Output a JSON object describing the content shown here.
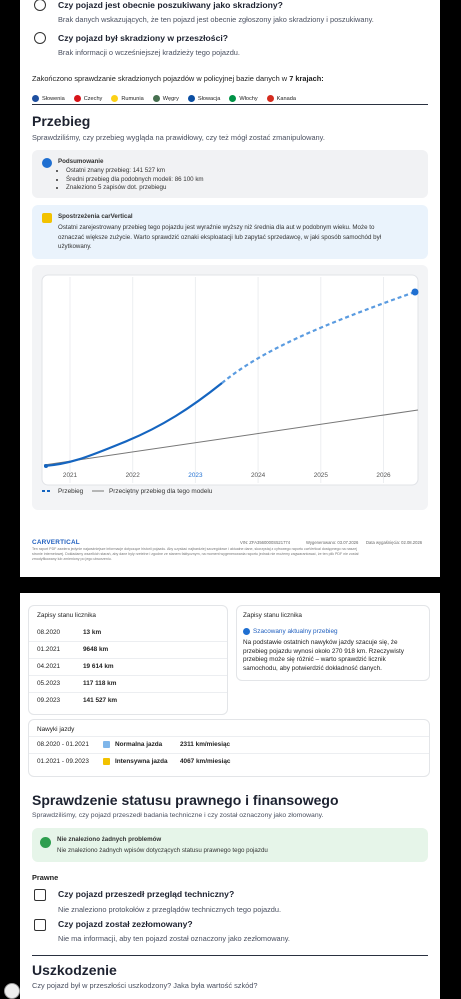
{
  "theft": {
    "q1": "Czy pojazd jest obecnie poszukiwany jako skradziony?",
    "a1": "Brak danych wskazujących, że ten pojazd jest obecnie zgłoszony jako skradziony i poszukiwany.",
    "q2": "Czy pojazd był skradziony w przeszłości?",
    "a2": "Brak informacji o wcześniejszej kradzieży tego pojazdu.",
    "checked": "Zakończono sprawdzanie skradzionych pojazdów w policyjnej bazie danych w",
    "checked_count": "7 krajach:",
    "countries": [
      "Słowenia",
      "Czechy",
      "Rumunia",
      "Węgry",
      "Słowacja",
      "Włochy",
      "Kanada"
    ]
  },
  "mileage": {
    "title": "Przebieg",
    "intro": "Sprawdziliśmy, czy przebieg wygląda na prawidłowy, czy też mógł zostać zmanipulowany.",
    "summary_title": "Podsumowanie",
    "summary": [
      "Ostatni znany przebieg: 141 527 km",
      "Średni przebieg dla podobnych modeli: 86 100 km",
      "Znaleziono 5 zapisów dot. przebiegu"
    ],
    "insight_title": "Spostrzeżenia carVertical",
    "insight_lines": [
      "Ostatni zarejestrowany przebieg tego pojazdu jest wyraźnie wyższy niż średnia dla aut w podobnym wieku. Może to",
      "oznaczać większe zużycie. Warto sprawdzić oznaki eksploatacji lub zapytać sprzedawcę, w jaki sposób samochód był",
      "użytkowany."
    ],
    "chart_years": [
      "2021",
      "2022",
      "2023",
      "2024",
      "2025",
      "2026"
    ],
    "legend": [
      "Przebieg",
      "Przeciętny przebieg dla tego modelu"
    ]
  },
  "footer": {
    "logo": "CARVERTICAL",
    "vin": "VIN: ZFA3560000S521774",
    "generated": "Wygenerowano: 03.07.2026",
    "expires": "Data wygaśnięcia: 02.08.2026",
    "disclaimer": [
      "Ten raport PDF zawiera jedynie najważniejsze informacje dotyczące historii pojazdu. Aby uzyskać najbardziej szczegółowe i aktualne dane, skorzystaj z cyfrowego raportu carVertical dostępnego na naszej",
      "stronie internetowej. Dokładamy wszelkich starań, aby dane były rzetelne i zgodne ze stanem faktycznym, na moment wygenerowania raportu jednak nie możemy zagwarantować, że ten plik PDF nie został",
      "zmodyfikowany lub zmieniony po jego utworzeniu."
    ]
  },
  "odometer": {
    "title": "Zapisy stanu licznika",
    "rows": [
      [
        "08.2020",
        "13 km"
      ],
      [
        "01.2021",
        "9648 km"
      ],
      [
        "04.2021",
        "19 614 km"
      ],
      [
        "05.2023",
        "117 118 km"
      ],
      [
        "09.2023",
        "141 527 km"
      ]
    ],
    "side_title": "Zapisy stanu licznika",
    "estimate_title": "Szacowany aktualny przebieg",
    "estimate_lines": [
      "Na podstawie ostatnich nawyków jazdy szacuje się, że",
      "przebieg pojazdu wynosi około 270 918 km. Rzeczywisty",
      "przebieg może się różnić – warto sprawdzić licznik",
      "samochodu, aby potwierdzić dokładność danych."
    ]
  },
  "habits": {
    "title": "Nawyki jazdy",
    "rows": [
      [
        "08.2020 - 01.2021",
        "Normalna jazda",
        "2311 km/miesiąc"
      ],
      [
        "01.2021 - 09.2023",
        "Intensywna jazda",
        "4067 km/miesiąc"
      ]
    ]
  },
  "legal": {
    "title": "Sprawdzenie statusu prawnego i finansowego",
    "intro": "Sprawdziliśmy, czy pojazd przeszedł badania techniczne i czy został oznaczony jako złomowany.",
    "ok_title": "Nie znaleziono żadnych problemów",
    "ok_text": "Nie znaleziono żadnych wpisów dotyczących statusu prawnego tego pojazdu",
    "section": "Prawne",
    "q1": "Czy pojazd przeszedł przegląd techniczny?",
    "a1": "Nie znaleziono protokołów z przeglądów technicznych tego pojazdu.",
    "q2": "Czy pojazd został zezłomowany?",
    "a2": "Nie ma informacji, aby ten pojazd został oznaczony jako zezłomowany."
  },
  "damage": {
    "title": "Uszkodzenie",
    "intro": "Czy pojazd był w przeszłości uszkodzony? Jaka była wartość szkód?"
  }
}
